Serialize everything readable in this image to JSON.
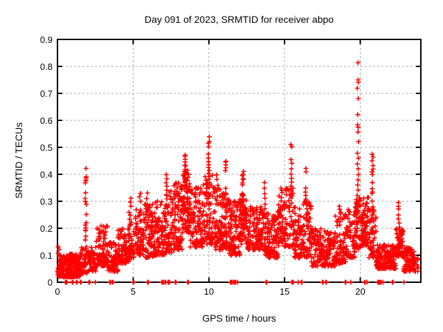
{
  "chart_data": {
    "type": "scatter",
    "title": "Day 091 of 2023, SRMTID for receiver abpo",
    "xlabel": "GPS time / hours",
    "ylabel": "SRMTID / TECUs",
    "series_name": "SRMTID",
    "xlim": [
      0,
      24
    ],
    "ylim": [
      0,
      0.9
    ],
    "xticks": [
      0,
      5,
      10,
      15,
      20
    ],
    "xtick_labels": [
      "0",
      "5",
      "10",
      "15",
      "20"
    ],
    "yticks": [
      0,
      0.1,
      0.2,
      0.3,
      0.4,
      0.5,
      0.6,
      0.7,
      0.8,
      0.9
    ],
    "ytick_labels": [
      "0",
      "0.1",
      "0.2",
      "0.3",
      "0.4",
      "0.5",
      "0.6",
      "0.7",
      "0.8",
      "0.9"
    ],
    "grid": true,
    "grid_color": "#a8a8a8",
    "marker": {
      "shape": "plus",
      "color": "#ff0000",
      "size": 7
    },
    "rng_seed": 91,
    "envelope_bands": [
      [
        0.0,
        1.5,
        250,
        0.02,
        0.105,
        1.6
      ],
      [
        1.5,
        2.0,
        45,
        0.03,
        0.13,
        1.3
      ],
      [
        2.0,
        2.55,
        60,
        0.04,
        0.13,
        1.4
      ],
      [
        2.55,
        3.3,
        90,
        0.06,
        0.21,
        1.5
      ],
      [
        3.3,
        4.0,
        80,
        0.04,
        0.15,
        1.5
      ],
      [
        4.0,
        4.7,
        85,
        0.07,
        0.2,
        1.4
      ],
      [
        4.7,
        5.2,
        55,
        0.09,
        0.26,
        1.4
      ],
      [
        5.2,
        5.7,
        60,
        0.1,
        0.27,
        1.5
      ],
      [
        5.7,
        6.4,
        75,
        0.09,
        0.29,
        1.5
      ],
      [
        6.4,
        7.1,
        85,
        0.1,
        0.3,
        1.5
      ],
      [
        7.1,
        7.6,
        60,
        0.11,
        0.34,
        1.5
      ],
      [
        7.6,
        8.25,
        95,
        0.12,
        0.37,
        1.4
      ],
      [
        8.25,
        8.75,
        75,
        0.18,
        0.43,
        1.2
      ],
      [
        8.75,
        9.6,
        100,
        0.13,
        0.35,
        1.5
      ],
      [
        9.6,
        10.35,
        80,
        0.14,
        0.4,
        1.6
      ],
      [
        10.35,
        11.0,
        90,
        0.12,
        0.35,
        1.6
      ],
      [
        11.0,
        11.35,
        45,
        0.12,
        0.34,
        1.4
      ],
      [
        11.35,
        12.05,
        95,
        0.1,
        0.3,
        1.5
      ],
      [
        12.05,
        12.55,
        70,
        0.14,
        0.33,
        1.3
      ],
      [
        12.55,
        13.55,
        110,
        0.12,
        0.28,
        1.5
      ],
      [
        13.55,
        13.95,
        45,
        0.1,
        0.26,
        1.4
      ],
      [
        13.95,
        14.55,
        70,
        0.09,
        0.25,
        1.5
      ],
      [
        14.55,
        15.05,
        60,
        0.13,
        0.32,
        1.3
      ],
      [
        15.05,
        15.65,
        60,
        0.13,
        0.35,
        1.5
      ],
      [
        15.65,
        16.15,
        60,
        0.09,
        0.28,
        1.5
      ],
      [
        16.15,
        16.75,
        70,
        0.09,
        0.32,
        1.5
      ],
      [
        16.75,
        17.55,
        85,
        0.06,
        0.2,
        1.5
      ],
      [
        17.55,
        18.35,
        85,
        0.06,
        0.19,
        1.5
      ],
      [
        18.35,
        19.05,
        70,
        0.07,
        0.26,
        1.5
      ],
      [
        19.05,
        19.65,
        60,
        0.09,
        0.27,
        1.4
      ],
      [
        19.65,
        20.05,
        55,
        0.12,
        0.32,
        1.2
      ],
      [
        20.05,
        20.55,
        65,
        0.13,
        0.32,
        1.2
      ],
      [
        20.55,
        21.05,
        55,
        0.09,
        0.27,
        1.4
      ],
      [
        21.05,
        22.35,
        170,
        0.05,
        0.14,
        1.5
      ],
      [
        22.35,
        22.85,
        70,
        0.09,
        0.2,
        1.2
      ],
      [
        22.85,
        23.55,
        75,
        0.04,
        0.13,
        1.5
      ],
      [
        23.3,
        23.85,
        25,
        0.04,
        0.1,
        1.5
      ]
    ],
    "spike_columns": [
      {
        "t": 0.08,
        "ys": [
          0.13,
          0.12,
          0.11
        ]
      },
      {
        "t": 1.87,
        "ys": [
          0.42,
          0.39,
          0.385,
          0.38,
          0.375,
          0.37,
          0.33,
          0.31,
          0.3,
          0.29,
          0.25,
          0.22,
          0.21,
          0.2,
          0.195,
          0.19,
          0.17,
          0.155,
          0.13
        ]
      },
      {
        "t": 4.85,
        "ys": [
          0.31,
          0.295,
          0.28
        ]
      },
      {
        "t": 5.45,
        "ys": [
          0.33,
          0.315,
          0.3
        ]
      },
      {
        "t": 5.92,
        "ys": [
          0.33,
          0.31,
          0.29,
          0.27,
          0.25,
          0.22
        ]
      },
      {
        "t": 7.2,
        "ys": [
          0.4,
          0.385,
          0.37,
          0.355,
          0.34,
          0.325,
          0.31
        ]
      },
      {
        "t": 8.45,
        "ys": [
          0.47,
          0.465,
          0.455,
          0.445,
          0.435,
          0.43,
          0.42,
          0.41,
          0.4,
          0.39,
          0.38,
          0.37,
          0.36
        ]
      },
      {
        "t": 9.15,
        "ys": [
          0.35,
          0.33,
          0.315,
          0.3
        ]
      },
      {
        "t": 10.0,
        "ys": [
          0.54,
          0.52,
          0.515,
          0.5,
          0.475,
          0.46,
          0.445,
          0.435,
          0.425,
          0.415,
          0.405,
          0.39,
          0.37,
          0.35,
          0.33,
          0.31,
          0.29,
          0.27
        ]
      },
      {
        "t": 10.55,
        "ys": [
          0.4,
          0.38,
          0.36
        ]
      },
      {
        "t": 11.1,
        "ys": [
          0.45,
          0.445,
          0.435,
          0.425,
          0.415,
          0.35,
          0.33
        ]
      },
      {
        "t": 12.25,
        "ys": [
          0.41,
          0.4,
          0.395,
          0.385,
          0.38,
          0.37,
          0.36,
          0.33,
          0.32,
          0.31
        ]
      },
      {
        "t": 13.7,
        "ys": [
          0.37,
          0.35,
          0.33,
          0.31,
          0.29,
          0.27,
          0.25
        ]
      },
      {
        "t": 14.8,
        "ys": [
          0.35,
          0.34,
          0.33,
          0.315,
          0.3
        ]
      },
      {
        "t": 15.45,
        "ys": [
          0.51,
          0.5,
          0.455,
          0.44,
          0.42,
          0.4,
          0.385,
          0.37,
          0.355,
          0.34,
          0.325,
          0.31
        ]
      },
      {
        "t": 16.4,
        "ys": [
          0.42,
          0.41,
          0.35,
          0.335,
          0.32,
          0.31,
          0.3
        ]
      },
      {
        "t": 18.65,
        "ys": [
          0.28,
          0.27,
          0.255,
          0.24,
          0.225,
          0.21
        ]
      },
      {
        "t": 19.85,
        "ys": [
          0.815,
          0.75,
          0.74,
          0.72,
          0.68,
          0.62,
          0.585,
          0.575,
          0.555,
          0.52,
          0.48,
          0.46,
          0.44,
          0.42,
          0.4,
          0.38,
          0.36,
          0.34,
          0.32,
          0.3
        ]
      },
      {
        "t": 20.8,
        "ys": [
          0.475,
          0.465,
          0.45,
          0.43,
          0.42,
          0.41,
          0.4,
          0.37,
          0.345,
          0.335,
          0.33,
          0.3,
          0.28,
          0.27,
          0.25
        ]
      },
      {
        "t": 22.55,
        "ys": [
          0.295,
          0.28,
          0.27,
          0.25,
          0.235,
          0.22,
          0.205
        ]
      }
    ],
    "zero_time_points": [
      0.52,
      0.57,
      0.62,
      0.98,
      1.03,
      1.25,
      1.3,
      1.52,
      1.57,
      2.08,
      2.13,
      2.5,
      3.45,
      3.5,
      3.62,
      3.67,
      5.0,
      5.05,
      5.95,
      6.0,
      6.9,
      6.95,
      7.0,
      7.1,
      7.15,
      7.3,
      7.35,
      7.4,
      7.78,
      7.83,
      8.6,
      8.65,
      11.42,
      11.47,
      11.52,
      11.62,
      11.67,
      11.72,
      11.77,
      11.9,
      13.78,
      13.83,
      15.48,
      15.53,
      15.58,
      15.9,
      16.1,
      16.15,
      17.5,
      17.55,
      17.72,
      17.77,
      19.0,
      19.05,
      19.38,
      20.28,
      20.33,
      20.45,
      21.15,
      21.2,
      21.28,
      21.33,
      21.38,
      21.5,
      22.12,
      22.17,
      22.88
    ]
  }
}
